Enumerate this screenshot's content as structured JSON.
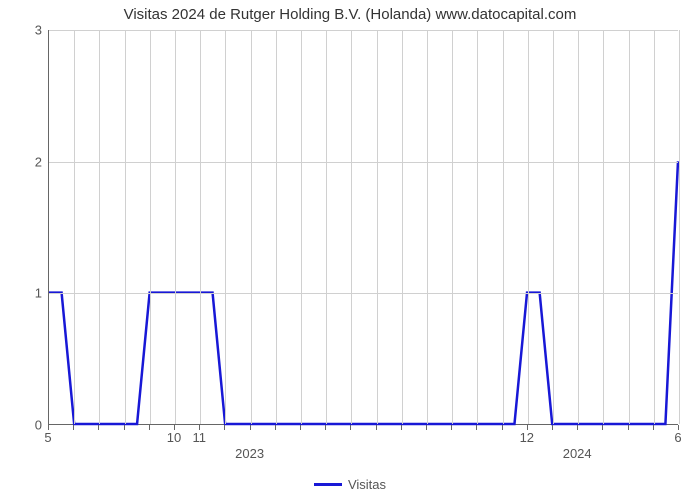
{
  "chart": {
    "type": "line",
    "title": "Visitas 2024 de Rutger Holding B.V. (Holanda) www.datocapital.com",
    "title_fontsize": 15,
    "title_color": "#333333",
    "background_color": "#ffffff",
    "grid_color": "#d0d0d0",
    "axis_color": "#666666",
    "tick_label_color": "#555555",
    "tick_fontsize": 13,
    "line_color": "#1818d6",
    "line_width": 2.5,
    "ylim": [
      0,
      3
    ],
    "yticks": [
      0,
      1,
      2,
      3
    ],
    "x_count": 26,
    "x_ticks": [
      {
        "pos": 0,
        "label": "5"
      },
      {
        "pos": 1,
        "label": ""
      },
      {
        "pos": 2,
        "label": ""
      },
      {
        "pos": 3,
        "label": ""
      },
      {
        "pos": 4,
        "label": ""
      },
      {
        "pos": 5,
        "label": "10"
      },
      {
        "pos": 6,
        "label": "11"
      },
      {
        "pos": 7,
        "label": ""
      },
      {
        "pos": 8,
        "label": ""
      },
      {
        "pos": 9,
        "label": ""
      },
      {
        "pos": 10,
        "label": ""
      },
      {
        "pos": 11,
        "label": ""
      },
      {
        "pos": 12,
        "label": ""
      },
      {
        "pos": 13,
        "label": ""
      },
      {
        "pos": 14,
        "label": ""
      },
      {
        "pos": 15,
        "label": ""
      },
      {
        "pos": 16,
        "label": ""
      },
      {
        "pos": 17,
        "label": ""
      },
      {
        "pos": 18,
        "label": ""
      },
      {
        "pos": 19,
        "label": "12"
      },
      {
        "pos": 20,
        "label": ""
      },
      {
        "pos": 21,
        "label": ""
      },
      {
        "pos": 22,
        "label": ""
      },
      {
        "pos": 23,
        "label": ""
      },
      {
        "pos": 24,
        "label": ""
      },
      {
        "pos": 25,
        "label": "6"
      }
    ],
    "x_year_labels": [
      {
        "pos_center": 8,
        "label": "2023"
      },
      {
        "pos_center": 21,
        "label": "2024"
      }
    ],
    "series": {
      "name": "Visitas",
      "y": [
        1,
        0,
        0,
        0,
        1,
        1,
        1,
        0,
        0,
        0,
        0,
        0,
        0,
        0,
        0,
        0,
        0,
        0,
        0,
        1,
        0,
        0,
        0,
        0,
        0,
        2
      ]
    },
    "legend": {
      "label": "Visitas",
      "swatch_color": "#1818d6"
    }
  }
}
